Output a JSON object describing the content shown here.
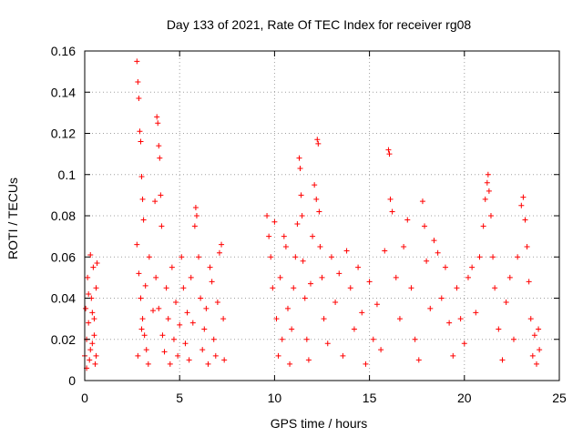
{
  "chart_data": {
    "type": "scatter",
    "title": "Day 133 of 2021, Rate Of TEC Index for receiver rg08",
    "xlabel": "GPS time / hours",
    "ylabel": "ROTI / TECUs",
    "xlim": [
      0,
      25
    ],
    "ylim": [
      0,
      0.16
    ],
    "xticks": [
      0,
      5,
      10,
      15,
      20,
      25
    ],
    "xtick_labels": [
      "0",
      "5",
      "10",
      "15",
      "20",
      "25"
    ],
    "yticks": [
      0,
      0.02,
      0.04,
      0.06,
      0.08,
      0.1,
      0.12,
      0.14,
      0.16
    ],
    "ytick_labels": [
      "0",
      "0.02",
      "0.04",
      "0.06",
      "0.08",
      "0.1",
      "0.12",
      "0.14",
      "0.16"
    ],
    "grid": true,
    "marker": "+",
    "color": "#ff0000",
    "series": [
      {
        "points": [
          [
            0.0,
            0.012
          ],
          [
            0.05,
            0.035
          ],
          [
            0.1,
            0.02
          ],
          [
            0.15,
            0.05
          ],
          [
            0.2,
            0.028
          ],
          [
            0.25,
            0.01
          ],
          [
            0.3,
            0.061
          ],
          [
            0.35,
            0.04
          ],
          [
            0.4,
            0.018
          ],
          [
            0.45,
            0.055
          ],
          [
            0.5,
            0.03
          ],
          [
            0.55,
            0.008
          ],
          [
            0.6,
            0.045
          ],
          [
            0.65,
            0.057
          ],
          [
            0.1,
            0.006
          ],
          [
            0.3,
            0.015
          ],
          [
            0.5,
            0.022
          ],
          [
            0.2,
            0.042
          ],
          [
            0.4,
            0.033
          ],
          [
            0.6,
            0.012
          ],
          [
            2.75,
            0.155
          ],
          [
            2.8,
            0.145
          ],
          [
            2.85,
            0.137
          ],
          [
            2.9,
            0.121
          ],
          [
            2.95,
            0.116
          ],
          [
            3.0,
            0.099
          ],
          [
            3.05,
            0.088
          ],
          [
            3.1,
            0.078
          ],
          [
            2.75,
            0.066
          ],
          [
            2.85,
            0.052
          ],
          [
            2.95,
            0.04
          ],
          [
            3.05,
            0.03
          ],
          [
            3.15,
            0.022
          ],
          [
            3.25,
            0.015
          ],
          [
            3.35,
            0.008
          ],
          [
            2.8,
            0.012
          ],
          [
            3.0,
            0.025
          ],
          [
            3.2,
            0.046
          ],
          [
            3.4,
            0.06
          ],
          [
            3.6,
            0.034
          ],
          [
            3.8,
            0.128
          ],
          [
            3.85,
            0.125
          ],
          [
            3.9,
            0.114
          ],
          [
            3.95,
            0.108
          ],
          [
            4.0,
            0.09
          ],
          [
            4.05,
            0.075
          ],
          [
            3.7,
            0.087
          ],
          [
            3.75,
            0.05
          ],
          [
            3.9,
            0.035
          ],
          [
            4.1,
            0.022
          ],
          [
            4.2,
            0.014
          ],
          [
            4.3,
            0.045
          ],
          [
            4.4,
            0.03
          ],
          [
            4.5,
            0.008
          ],
          [
            4.6,
            0.055
          ],
          [
            4.7,
            0.02
          ],
          [
            4.8,
            0.038
          ],
          [
            4.9,
            0.012
          ],
          [
            5.0,
            0.027
          ],
          [
            5.1,
            0.06
          ],
          [
            5.2,
            0.045
          ],
          [
            5.3,
            0.018
          ],
          [
            5.4,
            0.033
          ],
          [
            5.5,
            0.01
          ],
          [
            5.6,
            0.05
          ],
          [
            5.7,
            0.028
          ],
          [
            5.8,
            0.075
          ],
          [
            5.85,
            0.084
          ],
          [
            5.9,
            0.08
          ],
          [
            6.0,
            0.06
          ],
          [
            6.1,
            0.04
          ],
          [
            6.2,
            0.015
          ],
          [
            6.3,
            0.025
          ],
          [
            6.4,
            0.035
          ],
          [
            6.5,
            0.008
          ],
          [
            6.6,
            0.055
          ],
          [
            6.7,
            0.048
          ],
          [
            6.8,
            0.02
          ],
          [
            6.9,
            0.012
          ],
          [
            7.0,
            0.038
          ],
          [
            7.1,
            0.062
          ],
          [
            7.2,
            0.066
          ],
          [
            7.3,
            0.03
          ],
          [
            7.35,
            0.01
          ],
          [
            9.6,
            0.08
          ],
          [
            9.7,
            0.07
          ],
          [
            9.8,
            0.06
          ],
          [
            9.9,
            0.045
          ],
          [
            10.0,
            0.077
          ],
          [
            10.1,
            0.03
          ],
          [
            10.2,
            0.012
          ],
          [
            10.3,
            0.05
          ],
          [
            10.4,
            0.02
          ],
          [
            10.5,
            0.07
          ],
          [
            10.6,
            0.065
          ],
          [
            10.7,
            0.035
          ],
          [
            10.8,
            0.008
          ],
          [
            10.9,
            0.025
          ],
          [
            11.0,
            0.045
          ],
          [
            11.1,
            0.06
          ],
          [
            11.2,
            0.076
          ],
          [
            11.3,
            0.108
          ],
          [
            11.35,
            0.103
          ],
          [
            11.4,
            0.09
          ],
          [
            11.45,
            0.08
          ],
          [
            11.5,
            0.058
          ],
          [
            11.6,
            0.04
          ],
          [
            11.7,
            0.02
          ],
          [
            11.8,
            0.01
          ],
          [
            11.9,
            0.047
          ],
          [
            12.0,
            0.07
          ],
          [
            12.1,
            0.095
          ],
          [
            12.2,
            0.088
          ],
          [
            12.25,
            0.117
          ],
          [
            12.3,
            0.115
          ],
          [
            12.35,
            0.082
          ],
          [
            12.4,
            0.065
          ],
          [
            12.5,
            0.05
          ],
          [
            12.6,
            0.03
          ],
          [
            12.8,
            0.018
          ],
          [
            13.0,
            0.06
          ],
          [
            13.2,
            0.038
          ],
          [
            13.4,
            0.052
          ],
          [
            13.6,
            0.012
          ],
          [
            13.8,
            0.063
          ],
          [
            14.0,
            0.045
          ],
          [
            14.2,
            0.025
          ],
          [
            14.4,
            0.055
          ],
          [
            14.6,
            0.033
          ],
          [
            14.8,
            0.008
          ],
          [
            15.0,
            0.048
          ],
          [
            15.2,
            0.02
          ],
          [
            15.4,
            0.037
          ],
          [
            15.6,
            0.015
          ],
          [
            15.8,
            0.063
          ],
          [
            16.0,
            0.112
          ],
          [
            16.05,
            0.11
          ],
          [
            16.1,
            0.088
          ],
          [
            16.2,
            0.082
          ],
          [
            16.4,
            0.05
          ],
          [
            16.6,
            0.03
          ],
          [
            16.8,
            0.065
          ],
          [
            17.0,
            0.078
          ],
          [
            17.2,
            0.045
          ],
          [
            17.4,
            0.02
          ],
          [
            17.6,
            0.01
          ],
          [
            17.8,
            0.087
          ],
          [
            17.9,
            0.075
          ],
          [
            18.0,
            0.058
          ],
          [
            18.2,
            0.035
          ],
          [
            18.4,
            0.068
          ],
          [
            18.6,
            0.062
          ],
          [
            18.8,
            0.04
          ],
          [
            19.0,
            0.055
          ],
          [
            19.2,
            0.028
          ],
          [
            19.4,
            0.012
          ],
          [
            19.6,
            0.045
          ],
          [
            19.8,
            0.03
          ],
          [
            20.0,
            0.018
          ],
          [
            20.2,
            0.05
          ],
          [
            20.4,
            0.055
          ],
          [
            20.6,
            0.033
          ],
          [
            20.8,
            0.06
          ],
          [
            21.0,
            0.075
          ],
          [
            21.1,
            0.088
          ],
          [
            21.2,
            0.096
          ],
          [
            21.25,
            0.1
          ],
          [
            21.3,
            0.092
          ],
          [
            21.4,
            0.08
          ],
          [
            21.5,
            0.06
          ],
          [
            21.6,
            0.045
          ],
          [
            21.8,
            0.025
          ],
          [
            22.0,
            0.01
          ],
          [
            22.2,
            0.038
          ],
          [
            22.4,
            0.05
          ],
          [
            22.6,
            0.02
          ],
          [
            22.8,
            0.06
          ],
          [
            23.0,
            0.085
          ],
          [
            23.1,
            0.089
          ],
          [
            23.2,
            0.078
          ],
          [
            23.3,
            0.065
          ],
          [
            23.4,
            0.048
          ],
          [
            23.5,
            0.03
          ],
          [
            23.6,
            0.012
          ],
          [
            23.7,
            0.022
          ],
          [
            23.8,
            0.008
          ],
          [
            23.9,
            0.025
          ],
          [
            23.95,
            0.015
          ]
        ]
      }
    ]
  }
}
